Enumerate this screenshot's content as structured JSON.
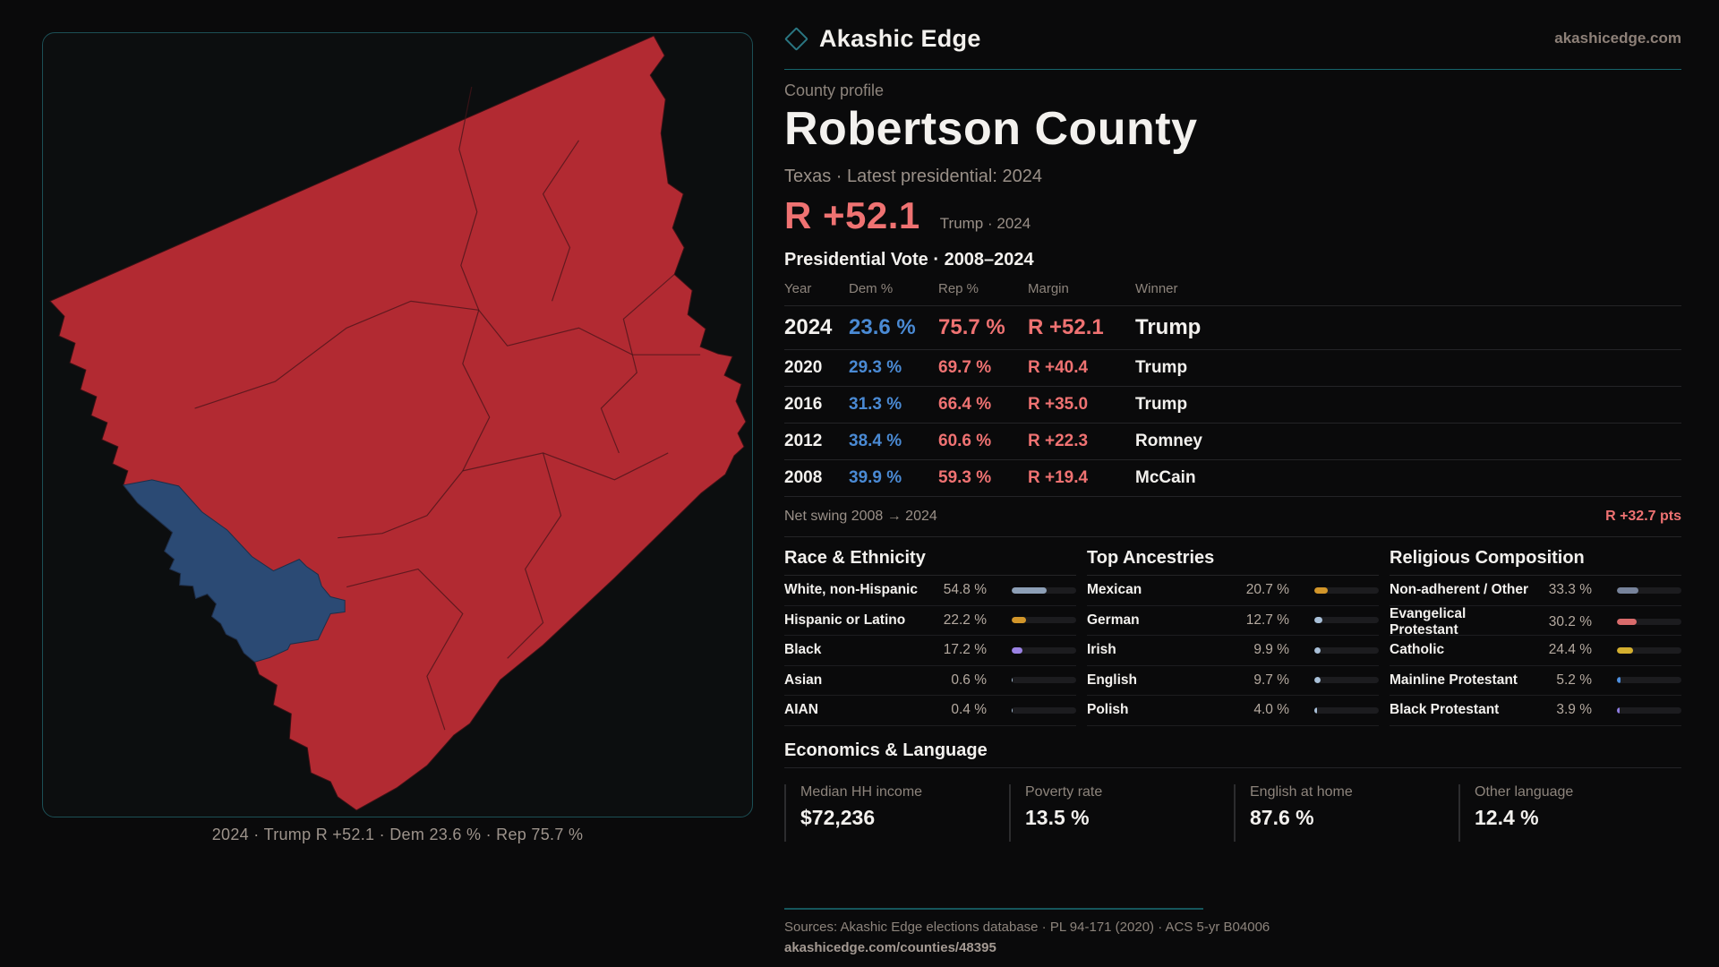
{
  "theme": {
    "bg": "#0a0a0b",
    "text": "#f3f1ee",
    "muted": "#8d847c",
    "teal": "#17646b",
    "panel-border": "#1c4f55",
    "divider": "#242427",
    "track": "#1c1c1f",
    "dem": "#4a8ad4",
    "rep": "#ef7272",
    "rep-map": "#b22a32",
    "dem-map": "#2b4a74"
  },
  "brand": {
    "name": "Akashic Edge",
    "domain": "akashicedge.com",
    "logo_icon": "diamond-outline"
  },
  "profile": {
    "eyebrow": "County profile",
    "title": "Robertson County",
    "subtitle": "Texas · Latest presidential: 2024",
    "headline_margin": "R +52.1",
    "headline_note": "Trump · 2024"
  },
  "vote_table": {
    "title": "Presidential Vote · 2008–2024",
    "columns": [
      "Year",
      "Dem %",
      "Rep %",
      "Margin",
      "Winner"
    ],
    "rows": [
      {
        "year": "2024",
        "dem": "23.6 %",
        "rep": "75.7 %",
        "margin": "R +52.1",
        "winner": "Trump"
      },
      {
        "year": "2020",
        "dem": "29.3 %",
        "rep": "69.7 %",
        "margin": "R +40.4",
        "winner": "Trump"
      },
      {
        "year": "2016",
        "dem": "31.3 %",
        "rep": "66.4 %",
        "margin": "R +35.0",
        "winner": "Trump"
      },
      {
        "year": "2012",
        "dem": "38.4 %",
        "rep": "60.6 %",
        "margin": "R +22.3",
        "winner": "Romney"
      },
      {
        "year": "2008",
        "dem": "39.9 %",
        "rep": "59.3 %",
        "margin": "R +19.4",
        "winner": "McCain"
      }
    ]
  },
  "net_swing": {
    "label": "Net swing 2008 → 2024",
    "value": "R +32.7 pts"
  },
  "demographics": [
    {
      "title": "Race & Ethnicity",
      "rows": [
        {
          "label": "White, non-Hispanic",
          "value": "54.8 %",
          "pct": 54.8,
          "color": "#8d9fb6"
        },
        {
          "label": "Hispanic or Latino",
          "value": "22.2 %",
          "pct": 22.2,
          "color": "#d2962a"
        },
        {
          "label": "Black",
          "value": "17.2 %",
          "pct": 17.2,
          "color": "#9b82e4"
        },
        {
          "label": "Asian",
          "value": "0.6 %",
          "pct": 0.6,
          "color": "#a9c0d8"
        },
        {
          "label": "AIAN",
          "value": "0.4 %",
          "pct": 0.4,
          "color": "#a9c0d8"
        }
      ]
    },
    {
      "title": "Top Ancestries",
      "rows": [
        {
          "label": "Mexican",
          "value": "20.7 %",
          "pct": 20.7,
          "color": "#d2962a"
        },
        {
          "label": "German",
          "value": "12.7 %",
          "pct": 12.7,
          "color": "#a9c0d8"
        },
        {
          "label": "Irish",
          "value": "9.9 %",
          "pct": 9.9,
          "color": "#a9c0d8"
        },
        {
          "label": "English",
          "value": "9.7 %",
          "pct": 9.7,
          "color": "#a9c0d8"
        },
        {
          "label": "Polish",
          "value": "4.0 %",
          "pct": 4.0,
          "color": "#a9c0d8"
        }
      ]
    },
    {
      "title": "Religious Composition",
      "rows": [
        {
          "label": "Non-adherent / Other",
          "value": "33.3 %",
          "pct": 33.3,
          "color": "#77839b"
        },
        {
          "label": "Evangelical Protestant",
          "value": "30.2 %",
          "pct": 30.2,
          "color": "#d96b6b"
        },
        {
          "label": "Catholic",
          "value": "24.4 %",
          "pct": 24.4,
          "color": "#d4af2f"
        },
        {
          "label": "Mainline Protestant",
          "value": "5.2 %",
          "pct": 5.2,
          "color": "#4d8fdf"
        },
        {
          "label": "Black Protestant",
          "value": "3.9 %",
          "pct": 3.9,
          "color": "#8d7ce0"
        }
      ]
    }
  ],
  "economics": {
    "title": "Economics & Language",
    "stats": [
      {
        "label": "Median HH income",
        "value": "$72,236"
      },
      {
        "label": "Poverty rate",
        "value": "13.5 %"
      },
      {
        "label": "English at home",
        "value": "87.6 %"
      },
      {
        "label": "Other language",
        "value": "12.4 %"
      }
    ]
  },
  "map": {
    "caption": "2024 · Trump R +52.1 · Dem 23.6 % · Rep 75.7 %",
    "winner_fill": "#b22a32",
    "dem_precinct_fill": "#2b4a74"
  },
  "footer": {
    "sources": "Sources: Akashic Edge elections database · PL 94-171 (2020) · ACS 5-yr B04006",
    "permalink": "akashicedge.com/counties/48395"
  }
}
